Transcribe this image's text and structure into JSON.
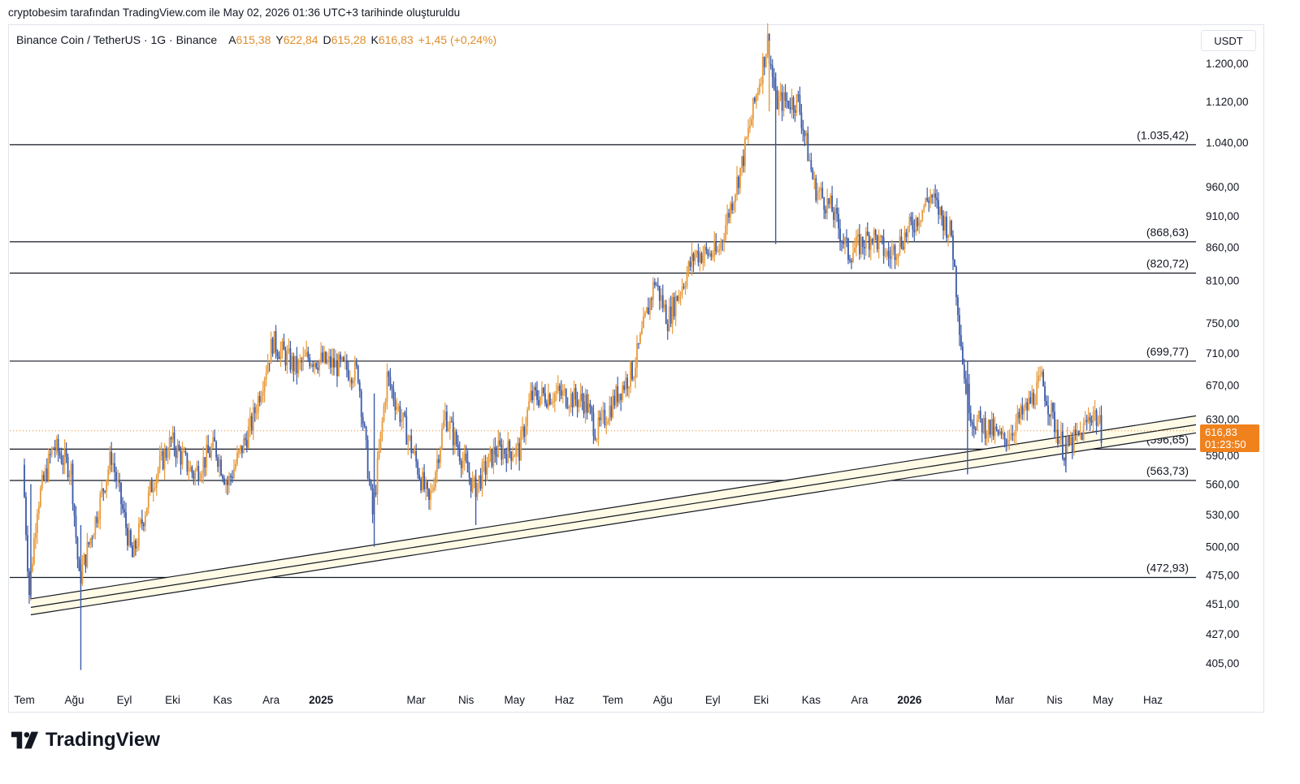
{
  "header": {
    "attribution": "cryptobesim tarafından TradingView.com ile May 02, 2026 01:36 UTC+3 tarihinde oluşturuldu"
  },
  "legend": {
    "symbol": "Binance Coin / TetherUS · 1G · Binance",
    "open_label": "A",
    "open_value": "615,38",
    "high_label": "Y",
    "high_value": "622,84",
    "low_label": "D",
    "low_value": "615,28",
    "close_label": "K",
    "close_value": "616,83",
    "change": "+1,45 (+0,24%)"
  },
  "currency": "USDT",
  "last_price": {
    "price": "616,83",
    "countdown": "01:23:50",
    "color": "#f0821e"
  },
  "brand": {
    "name": "TradingView",
    "icon": "tradingview-logo-icon"
  },
  "colors": {
    "up": "#e89b3c",
    "down": "#3c5ba8",
    "level_line": "#131722",
    "trend_fill": "#fffbe6",
    "price_line": "#f0821e"
  },
  "chart_data": {
    "type": "candlestick",
    "title": "Binance Coin / TetherUS · 1G · Binance",
    "y_scale": "log",
    "y_ticks": [
      {
        "value": 1200,
        "label": "1.200,00"
      },
      {
        "value": 1120,
        "label": "1.120,00"
      },
      {
        "value": 1040,
        "label": "1.040,00"
      },
      {
        "value": 960,
        "label": "960,00"
      },
      {
        "value": 910,
        "label": "910,00"
      },
      {
        "value": 860,
        "label": "860,00"
      },
      {
        "value": 810,
        "label": "810,00"
      },
      {
        "value": 750,
        "label": "750,00"
      },
      {
        "value": 710,
        "label": "710,00"
      },
      {
        "value": 670,
        "label": "670,00"
      },
      {
        "value": 630,
        "label": "630,00"
      },
      {
        "value": 590,
        "label": "590,00"
      },
      {
        "value": 560,
        "label": "560,00"
      },
      {
        "value": 530,
        "label": "530,00"
      },
      {
        "value": 500,
        "label": "500,00"
      },
      {
        "value": 475,
        "label": "475,00"
      },
      {
        "value": 451,
        "label": "451,00"
      },
      {
        "value": 427,
        "label": "427,00"
      },
      {
        "value": 405,
        "label": "405,00"
      }
    ],
    "x_ticks": [
      {
        "label": "Tem",
        "date": "2024-07-01",
        "bold": false
      },
      {
        "label": "Ağu",
        "date": "2024-08-01",
        "bold": false
      },
      {
        "label": "Eyl",
        "date": "2024-09-01",
        "bold": false
      },
      {
        "label": "Eki",
        "date": "2024-10-01",
        "bold": false
      },
      {
        "label": "Kas",
        "date": "2024-11-01",
        "bold": false
      },
      {
        "label": "Ara",
        "date": "2024-12-01",
        "bold": false
      },
      {
        "label": "2025",
        "date": "2025-01-01",
        "bold": true
      },
      {
        "label": "Mar",
        "date": "2025-03-01",
        "bold": false
      },
      {
        "label": "Nis",
        "date": "2025-04-01",
        "bold": false
      },
      {
        "label": "May",
        "date": "2025-05-01",
        "bold": false
      },
      {
        "label": "Haz",
        "date": "2025-06-01",
        "bold": false
      },
      {
        "label": "Tem",
        "date": "2025-07-01",
        "bold": false
      },
      {
        "label": "Ağu",
        "date": "2025-08-01",
        "bold": false
      },
      {
        "label": "Eyl",
        "date": "2025-09-01",
        "bold": false
      },
      {
        "label": "Eki",
        "date": "2025-10-01",
        "bold": false
      },
      {
        "label": "Kas",
        "date": "2025-11-01",
        "bold": false
      },
      {
        "label": "Ara",
        "date": "2025-12-01",
        "bold": false
      },
      {
        "label": "2026",
        "date": "2026-01-01",
        "bold": true
      },
      {
        "label": "Mar",
        "date": "2026-03-01",
        "bold": false
      },
      {
        "label": "Nis",
        "date": "2026-04-01",
        "bold": false
      },
      {
        "label": "May",
        "date": "2026-05-01",
        "bold": false
      },
      {
        "label": "Haz",
        "date": "2026-06-01",
        "bold": false
      }
    ],
    "levels": [
      {
        "value": 1035.42,
        "label": "(1.035,42)"
      },
      {
        "value": 868.63,
        "label": "(868,63)"
      },
      {
        "value": 820.72,
        "label": "(820,72)"
      },
      {
        "value": 699.77,
        "label": "(699,77)"
      },
      {
        "value": 596.65,
        "label": "(596,65)"
      },
      {
        "value": 563.73,
        "label": "(563,73)"
      },
      {
        "value": 472.93,
        "label": "(472,93)"
      }
    ],
    "trend_channel": {
      "start_date": "2024-07-05",
      "end_date": "2026-06-01",
      "upper": [
        455,
        626
      ],
      "middle": [
        448,
        616
      ],
      "lower": [
        442,
        607
      ]
    },
    "current_price": 616.83,
    "price_path": [
      {
        "date": "2024-07-01",
        "close": 580
      },
      {
        "date": "2024-07-05",
        "close": 460
      },
      {
        "date": "2024-07-10",
        "close": 540
      },
      {
        "date": "2024-07-20",
        "close": 600
      },
      {
        "date": "2024-07-31",
        "close": 575
      },
      {
        "date": "2024-08-05",
        "close": 470
      },
      {
        "date": "2024-08-15",
        "close": 525
      },
      {
        "date": "2024-08-25",
        "close": 590
      },
      {
        "date": "2024-09-07",
        "close": 490
      },
      {
        "date": "2024-09-20",
        "close": 565
      },
      {
        "date": "2024-10-01",
        "close": 605
      },
      {
        "date": "2024-10-15",
        "close": 570
      },
      {
        "date": "2024-10-28",
        "close": 600
      },
      {
        "date": "2024-11-05",
        "close": 560
      },
      {
        "date": "2024-11-20",
        "close": 625
      },
      {
        "date": "2024-12-03",
        "close": 725
      },
      {
        "date": "2024-12-18",
        "close": 690
      },
      {
        "date": "2024-12-25",
        "close": 705
      },
      {
        "date": "2025-01-10",
        "close": 695
      },
      {
        "date": "2025-01-25",
        "close": 685
      },
      {
        "date": "2025-02-03",
        "close": 530
      },
      {
        "date": "2025-02-12",
        "close": 680
      },
      {
        "date": "2025-02-25",
        "close": 610
      },
      {
        "date": "2025-03-10",
        "close": 540
      },
      {
        "date": "2025-03-20",
        "close": 635
      },
      {
        "date": "2025-04-07",
        "close": 555
      },
      {
        "date": "2025-04-20",
        "close": 595
      },
      {
        "date": "2025-05-05",
        "close": 595
      },
      {
        "date": "2025-05-12",
        "close": 655
      },
      {
        "date": "2025-05-28",
        "close": 660
      },
      {
        "date": "2025-06-15",
        "close": 650
      },
      {
        "date": "2025-06-22",
        "close": 615
      },
      {
        "date": "2025-07-05",
        "close": 660
      },
      {
        "date": "2025-07-15",
        "close": 690
      },
      {
        "date": "2025-07-28",
        "close": 810
      },
      {
        "date": "2025-08-05",
        "close": 755
      },
      {
        "date": "2025-08-22",
        "close": 850
      },
      {
        "date": "2025-09-05",
        "close": 850
      },
      {
        "date": "2025-09-20",
        "close": 1000
      },
      {
        "date": "2025-10-06",
        "close": 1250
      },
      {
        "date": "2025-10-11",
        "close": 1120
      },
      {
        "date": "2025-10-25",
        "close": 1120
      },
      {
        "date": "2025-11-04",
        "close": 960
      },
      {
        "date": "2025-11-15",
        "close": 920
      },
      {
        "date": "2025-11-25",
        "close": 850
      },
      {
        "date": "2025-12-10",
        "close": 880
      },
      {
        "date": "2025-12-20",
        "close": 845
      },
      {
        "date": "2026-01-05",
        "close": 900
      },
      {
        "date": "2026-01-15",
        "close": 945
      },
      {
        "date": "2026-01-28",
        "close": 880
      },
      {
        "date": "2026-02-05",
        "close": 680
      },
      {
        "date": "2026-02-10",
        "close": 630
      },
      {
        "date": "2026-02-20",
        "close": 620
      },
      {
        "date": "2026-03-01",
        "close": 605
      },
      {
        "date": "2026-03-15",
        "close": 640
      },
      {
        "date": "2026-03-25",
        "close": 675
      },
      {
        "date": "2026-04-01",
        "close": 630
      },
      {
        "date": "2026-04-08",
        "close": 595
      },
      {
        "date": "2026-04-18",
        "close": 612
      },
      {
        "date": "2026-04-26",
        "close": 640
      },
      {
        "date": "2026-05-01",
        "close": 616.83
      }
    ]
  }
}
